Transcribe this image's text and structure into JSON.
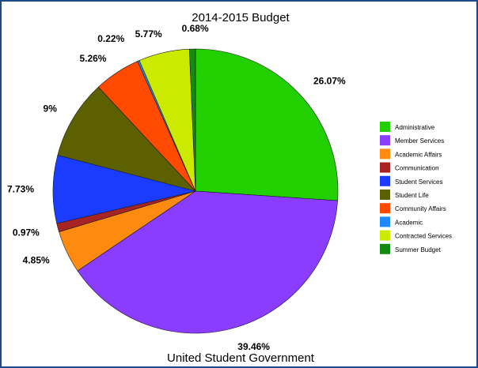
{
  "chart_data": {
    "type": "pie",
    "title": "2014-2015 Budget",
    "subtitle": "United Student Government",
    "legend_position": "right",
    "slices": [
      {
        "label": "Administrative",
        "value": 26.07,
        "display": "26.07%",
        "color": "#22d000"
      },
      {
        "label": "Member Services",
        "value": 39.46,
        "display": "39.46%",
        "color": "#8a3cff"
      },
      {
        "label": "Academic Affairs",
        "value": 4.85,
        "display": "4.85%",
        "color": "#ff8a10"
      },
      {
        "label": "Communication",
        "value": 0.97,
        "display": "0.97%",
        "color": "#a82424"
      },
      {
        "label": "Student Services",
        "value": 7.73,
        "display": "7.73%",
        "color": "#1a3cff"
      },
      {
        "label": "Student Life",
        "value": 9.0,
        "display": "9%",
        "color": "#5c6000"
      },
      {
        "label": "Community Affairs",
        "value": 5.26,
        "display": "5.26%",
        "color": "#ff4a00"
      },
      {
        "label": "Academic",
        "value": 0.22,
        "display": "0.22%",
        "color": "#1e88ff"
      },
      {
        "label": "Contracted Services",
        "value": 5.77,
        "display": "5.77%",
        "color": "#ccea00"
      },
      {
        "label": "Summer Budget",
        "value": 0.68,
        "display": "0.68%",
        "color": "#138a10"
      }
    ]
  }
}
